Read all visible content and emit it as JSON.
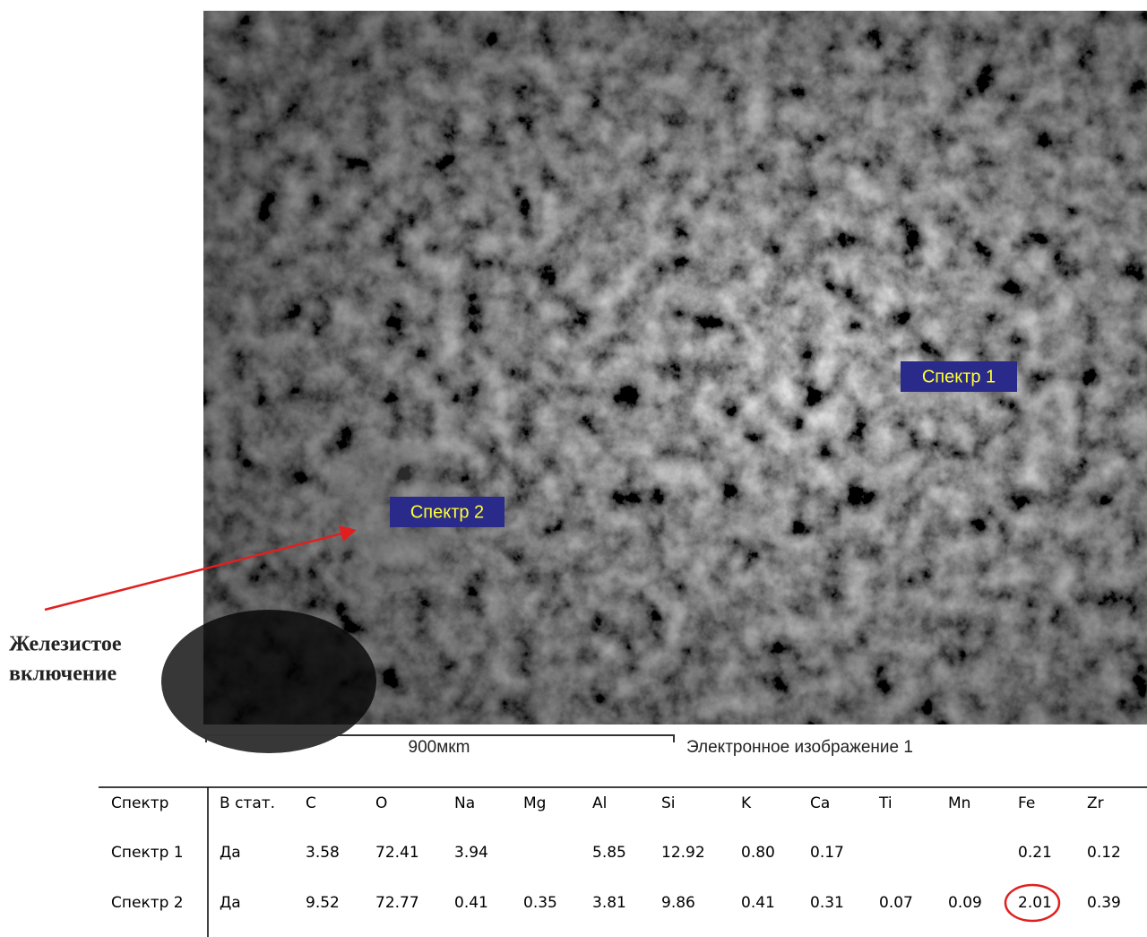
{
  "image": {
    "labels": [
      "Спектр 1",
      "Спектр 2"
    ],
    "scale_bar": "900мкm",
    "caption": "Электронное изображение 1"
  },
  "annotation": {
    "lines": [
      "Железистое",
      "включение"
    ]
  },
  "table": {
    "header": [
      "Спектр",
      "В стат.",
      "C",
      "O",
      "Na",
      "Mg",
      "Al",
      "Si",
      "K",
      "Ca",
      "Ti",
      "Mn",
      "Fe",
      "Zr"
    ],
    "rows": [
      [
        "Спектр 1",
        "Да",
        "3.58",
        "72.41",
        "3.94",
        null,
        "5.85",
        "12.92",
        "0.80",
        "0.17",
        null,
        null,
        "0.21",
        "0.12"
      ],
      [
        "Спектр 2",
        "Да",
        "9.52",
        "72.77",
        "0.41",
        "0.35",
        "3.81",
        "9.86",
        "0.41",
        "0.31",
        "0.07",
        "0.09",
        "2.01",
        "0.39"
      ]
    ]
  }
}
